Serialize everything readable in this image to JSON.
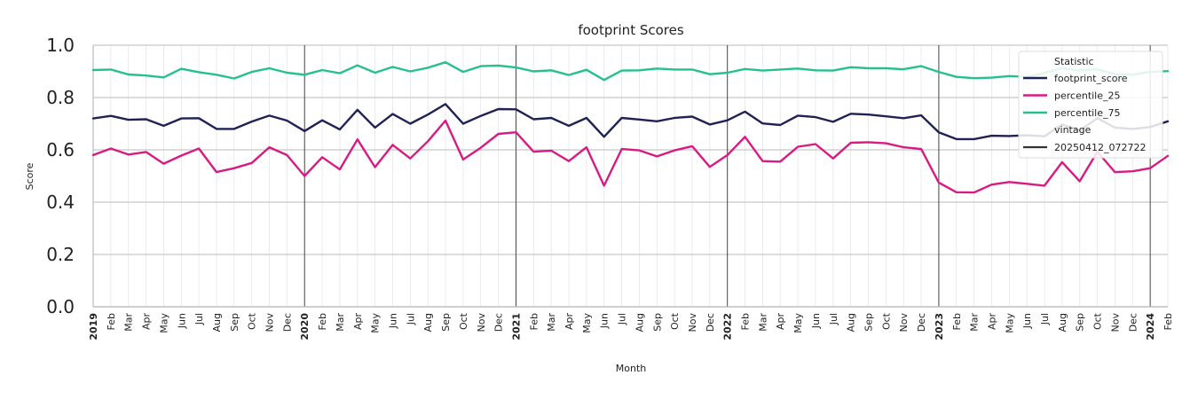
{
  "chart_data": {
    "type": "line",
    "title": "footprint Scores",
    "xlabel": "Month",
    "ylabel": "Score",
    "ylim": [
      0.0,
      1.0
    ],
    "yticks": [
      "0.0",
      "0.2",
      "0.4",
      "0.6",
      "0.8",
      "1.0"
    ],
    "grid": true,
    "legend_placement": "top-right",
    "legend": {
      "title": "Statistic",
      "subtitle": "vintage",
      "vintage_label": "20250412_072722"
    },
    "x": [
      "2019",
      "Feb",
      "Mar",
      "Apr",
      "May",
      "Jun",
      "Jul",
      "Aug",
      "Sep",
      "Oct",
      "Nov",
      "Dec",
      "2020",
      "Feb",
      "Mar",
      "Apr",
      "May",
      "Jun",
      "Jul",
      "Aug",
      "Sep",
      "Oct",
      "Nov",
      "Dec",
      "2021",
      "Feb",
      "Mar",
      "Apr",
      "May",
      "Jun",
      "Jul",
      "Aug",
      "Sep",
      "Oct",
      "Nov",
      "Dec",
      "2022",
      "Feb",
      "Mar",
      "Apr",
      "May",
      "Jun",
      "Jul",
      "Aug",
      "Sep",
      "Oct",
      "Nov",
      "Dec",
      "2023",
      "Feb",
      "Mar",
      "Apr",
      "May",
      "Jun",
      "Jul",
      "Aug",
      "Sep",
      "Oct",
      "Nov",
      "Dec",
      "2024",
      "Feb"
    ],
    "series": [
      {
        "name": "footprint_score",
        "color": "#1f2354",
        "values": [
          0.72,
          0.73,
          0.715,
          0.717,
          0.692,
          0.72,
          0.721,
          0.68,
          0.68,
          0.708,
          0.731,
          0.712,
          0.672,
          0.713,
          0.678,
          0.753,
          0.685,
          0.737,
          0.7,
          0.735,
          0.775,
          0.7,
          0.73,
          0.756,
          0.755,
          0.717,
          0.722,
          0.692,
          0.722,
          0.65,
          0.722,
          0.716,
          0.709,
          0.722,
          0.727,
          0.697,
          0.713,
          0.746,
          0.701,
          0.695,
          0.731,
          0.725,
          0.707,
          0.738,
          0.735,
          0.728,
          0.721,
          0.732,
          0.667,
          0.641,
          0.641,
          0.654,
          0.653,
          0.656,
          0.652,
          0.697,
          0.674,
          0.721,
          0.685,
          0.68,
          0.687,
          0.709
        ]
      },
      {
        "name": "percentile_25",
        "color": "#d81b83",
        "values": [
          0.58,
          0.605,
          0.582,
          0.592,
          0.547,
          0.578,
          0.605,
          0.515,
          0.53,
          0.55,
          0.61,
          0.58,
          0.5,
          0.572,
          0.525,
          0.64,
          0.534,
          0.619,
          0.567,
          0.633,
          0.712,
          0.563,
          0.608,
          0.661,
          0.667,
          0.593,
          0.597,
          0.557,
          0.61,
          0.463,
          0.603,
          0.598,
          0.575,
          0.598,
          0.614,
          0.535,
          0.58,
          0.65,
          0.557,
          0.555,
          0.612,
          0.622,
          0.567,
          0.627,
          0.629,
          0.625,
          0.61,
          0.603,
          0.475,
          0.438,
          0.437,
          0.467,
          0.477,
          0.47,
          0.463,
          0.553,
          0.48,
          0.593,
          0.515,
          0.518,
          0.53,
          0.577
        ]
      },
      {
        "name": "percentile_75",
        "color": "#26c08e",
        "values": [
          0.905,
          0.907,
          0.888,
          0.884,
          0.877,
          0.91,
          0.897,
          0.887,
          0.873,
          0.898,
          0.912,
          0.895,
          0.887,
          0.905,
          0.893,
          0.923,
          0.895,
          0.917,
          0.9,
          0.914,
          0.935,
          0.898,
          0.92,
          0.922,
          0.915,
          0.9,
          0.904,
          0.886,
          0.906,
          0.867,
          0.903,
          0.904,
          0.911,
          0.907,
          0.907,
          0.889,
          0.895,
          0.909,
          0.903,
          0.907,
          0.911,
          0.904,
          0.903,
          0.916,
          0.912,
          0.912,
          0.908,
          0.92,
          0.898,
          0.879,
          0.874,
          0.876,
          0.882,
          0.879,
          0.894,
          0.913,
          0.903,
          0.908,
          0.889,
          0.887,
          0.898,
          0.901
        ]
      }
    ]
  }
}
